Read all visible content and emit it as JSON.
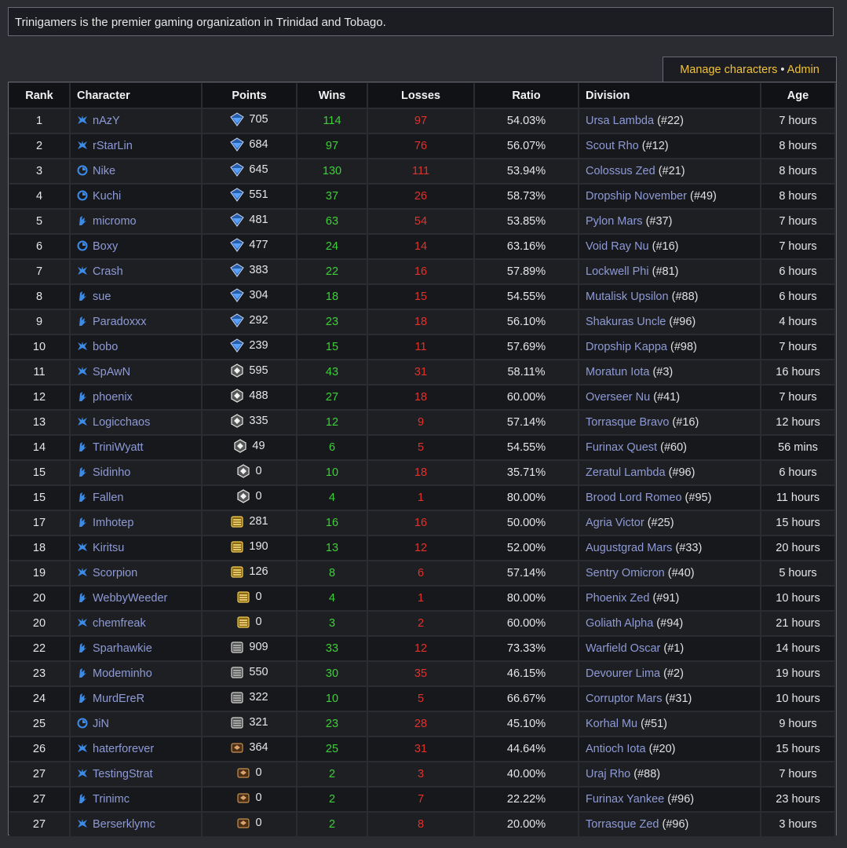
{
  "intro": "Trinigamers is the premier gaming organization in Trinidad and Tobago.",
  "tab": {
    "manage": "Manage characters",
    "sep": " • ",
    "admin": "Admin"
  },
  "headers": [
    "Rank",
    "Character",
    "Points",
    "Wins",
    "Losses",
    "Ratio",
    "Division",
    "Age"
  ],
  "colors": {
    "wins": "#3fcf3a",
    "losses": "#e3302b",
    "link": "#8e9ad6",
    "accent": "#f0c23c"
  },
  "rows": [
    {
      "rank": "1",
      "name": "nAzY",
      "race": "terran",
      "league": "diamond",
      "points": "705",
      "wins": "114",
      "losses": "97",
      "ratio": "54.03%",
      "division": "Ursa Lambda",
      "div_rank": "(#22)",
      "age": "7 hours"
    },
    {
      "rank": "2",
      "name": "rStarLin",
      "race": "terran",
      "league": "diamond",
      "points": "684",
      "wins": "97",
      "losses": "76",
      "ratio": "56.07%",
      "division": "Scout Rho",
      "div_rank": "(#12)",
      "age": "8 hours"
    },
    {
      "rank": "3",
      "name": "Nike",
      "race": "protoss",
      "league": "diamond",
      "points": "645",
      "wins": "130",
      "losses": "111",
      "ratio": "53.94%",
      "division": "Colossus Zed",
      "div_rank": "(#21)",
      "age": "8 hours"
    },
    {
      "rank": "4",
      "name": "Kuchi",
      "race": "protoss",
      "league": "diamond",
      "points": "551",
      "wins": "37",
      "losses": "26",
      "ratio": "58.73%",
      "division": "Dropship November",
      "div_rank": "(#49)",
      "age": "8 hours"
    },
    {
      "rank": "5",
      "name": "micromo",
      "race": "zerg",
      "league": "diamond",
      "points": "481",
      "wins": "63",
      "losses": "54",
      "ratio": "53.85%",
      "division": "Pylon Mars",
      "div_rank": "(#37)",
      "age": "7 hours"
    },
    {
      "rank": "6",
      "name": "Boxy",
      "race": "protoss",
      "league": "diamond",
      "points": "477",
      "wins": "24",
      "losses": "14",
      "ratio": "63.16%",
      "division": "Void Ray Nu",
      "div_rank": "(#16)",
      "age": "7 hours"
    },
    {
      "rank": "7",
      "name": "Crash",
      "race": "terran",
      "league": "diamond",
      "points": "383",
      "wins": "22",
      "losses": "16",
      "ratio": "57.89%",
      "division": "Lockwell Phi",
      "div_rank": "(#81)",
      "age": "6 hours"
    },
    {
      "rank": "8",
      "name": "sue",
      "race": "zerg",
      "league": "diamond",
      "points": "304",
      "wins": "18",
      "losses": "15",
      "ratio": "54.55%",
      "division": "Mutalisk Upsilon",
      "div_rank": "(#88)",
      "age": "6 hours"
    },
    {
      "rank": "9",
      "name": "Paradoxxx",
      "race": "zerg",
      "league": "diamond",
      "points": "292",
      "wins": "23",
      "losses": "18",
      "ratio": "56.10%",
      "division": "Shakuras Uncle",
      "div_rank": "(#96)",
      "age": "4 hours"
    },
    {
      "rank": "10",
      "name": "bobo",
      "race": "terran",
      "league": "diamond",
      "points": "239",
      "wins": "15",
      "losses": "11",
      "ratio": "57.69%",
      "division": "Dropship Kappa",
      "div_rank": "(#98)",
      "age": "7 hours"
    },
    {
      "rank": "11",
      "name": "SpAwN",
      "race": "terran",
      "league": "platinum",
      "points": "595",
      "wins": "43",
      "losses": "31",
      "ratio": "58.11%",
      "division": "Moratun Iota",
      "div_rank": "(#3)",
      "age": "16 hours"
    },
    {
      "rank": "12",
      "name": "phoenix",
      "race": "zerg",
      "league": "platinum",
      "points": "488",
      "wins": "27",
      "losses": "18",
      "ratio": "60.00%",
      "division": "Overseer Nu",
      "div_rank": "(#41)",
      "age": "7 hours"
    },
    {
      "rank": "13",
      "name": "Logicchaos",
      "race": "terran",
      "league": "platinum",
      "points": "335",
      "wins": "12",
      "losses": "9",
      "ratio": "57.14%",
      "division": "Torrasque Bravo",
      "div_rank": "(#16)",
      "age": "12 hours"
    },
    {
      "rank": "14",
      "name": "TriniWyatt",
      "race": "zerg",
      "league": "platinum",
      "points": "49",
      "wins": "6",
      "losses": "5",
      "ratio": "54.55%",
      "division": "Furinax Quest",
      "div_rank": "(#60)",
      "age": "56 mins"
    },
    {
      "rank": "15",
      "name": "Sidinho",
      "race": "zerg",
      "league": "platinum",
      "points": "0",
      "wins": "10",
      "losses": "18",
      "ratio": "35.71%",
      "division": "Zeratul Lambda",
      "div_rank": "(#96)",
      "age": "6 hours"
    },
    {
      "rank": "15",
      "name": "Fallen",
      "race": "zerg",
      "league": "platinum",
      "points": "0",
      "wins": "4",
      "losses": "1",
      "ratio": "80.00%",
      "division": "Brood Lord Romeo",
      "div_rank": "(#95)",
      "age": "11 hours"
    },
    {
      "rank": "17",
      "name": "Imhotep",
      "race": "zerg",
      "league": "gold",
      "points": "281",
      "wins": "16",
      "losses": "16",
      "ratio": "50.00%",
      "division": "Agria Victor",
      "div_rank": "(#25)",
      "age": "15 hours"
    },
    {
      "rank": "18",
      "name": "Kiritsu",
      "race": "terran",
      "league": "gold",
      "points": "190",
      "wins": "13",
      "losses": "12",
      "ratio": "52.00%",
      "division": "Augustgrad Mars",
      "div_rank": "(#33)",
      "age": "20 hours"
    },
    {
      "rank": "19",
      "name": "Scorpion",
      "race": "terran",
      "league": "gold",
      "points": "126",
      "wins": "8",
      "losses": "6",
      "ratio": "57.14%",
      "division": "Sentry Omicron",
      "div_rank": "(#40)",
      "age": "5 hours"
    },
    {
      "rank": "20",
      "name": "WebbyWeeder",
      "race": "zerg",
      "league": "gold",
      "points": "0",
      "wins": "4",
      "losses": "1",
      "ratio": "80.00%",
      "division": "Phoenix Zed",
      "div_rank": "(#91)",
      "age": "10 hours"
    },
    {
      "rank": "20",
      "name": "chemfreak",
      "race": "terran",
      "league": "gold",
      "points": "0",
      "wins": "3",
      "losses": "2",
      "ratio": "60.00%",
      "division": "Goliath Alpha",
      "div_rank": "(#94)",
      "age": "21 hours"
    },
    {
      "rank": "22",
      "name": "Sparhawkie",
      "race": "zerg",
      "league": "silver",
      "points": "909",
      "wins": "33",
      "losses": "12",
      "ratio": "73.33%",
      "division": "Warfield Oscar",
      "div_rank": "(#1)",
      "age": "14 hours"
    },
    {
      "rank": "23",
      "name": "Modeminho",
      "race": "zerg",
      "league": "silver",
      "points": "550",
      "wins": "30",
      "losses": "35",
      "ratio": "46.15%",
      "division": "Devourer Lima",
      "div_rank": "(#2)",
      "age": "19 hours"
    },
    {
      "rank": "24",
      "name": "MurdEreR",
      "race": "zerg",
      "league": "silver",
      "points": "322",
      "wins": "10",
      "losses": "5",
      "ratio": "66.67%",
      "division": "Corruptor Mars",
      "div_rank": "(#31)",
      "age": "10 hours"
    },
    {
      "rank": "25",
      "name": "JiN",
      "race": "protoss",
      "league": "silver",
      "points": "321",
      "wins": "23",
      "losses": "28",
      "ratio": "45.10%",
      "division": "Korhal Mu",
      "div_rank": "(#51)",
      "age": "9 hours"
    },
    {
      "rank": "26",
      "name": "haterforever",
      "race": "terran",
      "league": "bronze",
      "points": "364",
      "wins": "25",
      "losses": "31",
      "ratio": "44.64%",
      "division": "Antioch Iota",
      "div_rank": "(#20)",
      "age": "15 hours"
    },
    {
      "rank": "27",
      "name": "TestingStrat",
      "race": "terran",
      "league": "bronze",
      "points": "0",
      "wins": "2",
      "losses": "3",
      "ratio": "40.00%",
      "division": "Uraj Rho",
      "div_rank": "(#88)",
      "age": "7 hours"
    },
    {
      "rank": "27",
      "name": "Trinimc",
      "race": "zerg",
      "league": "bronze",
      "points": "0",
      "wins": "2",
      "losses": "7",
      "ratio": "22.22%",
      "division": "Furinax Yankee",
      "div_rank": "(#96)",
      "age": "23 hours"
    },
    {
      "rank": "27",
      "name": "Berserklymc",
      "race": "terran",
      "league": "bronze",
      "points": "0",
      "wins": "2",
      "losses": "8",
      "ratio": "20.00%",
      "division": "Torrasque Zed",
      "div_rank": "(#96)",
      "age": "3 hours"
    }
  ]
}
